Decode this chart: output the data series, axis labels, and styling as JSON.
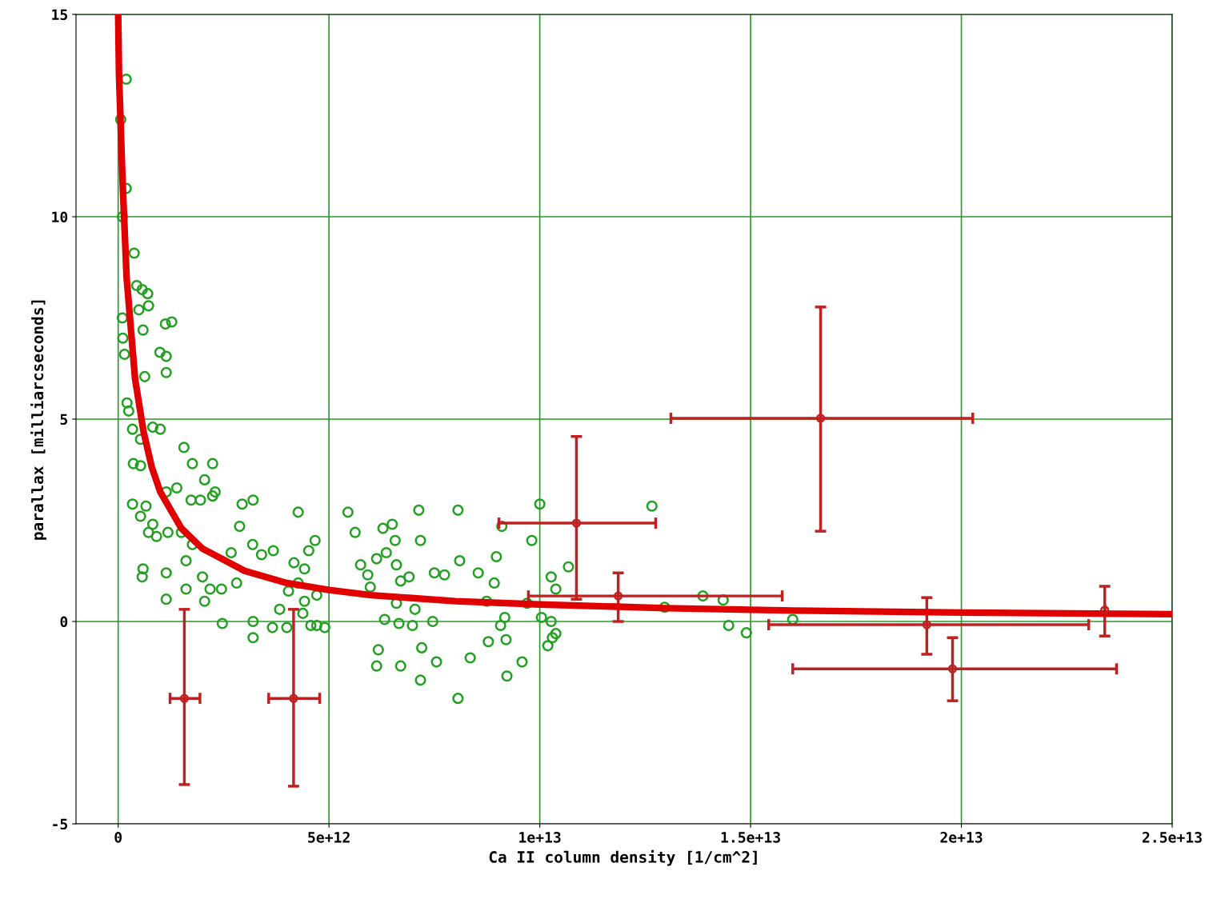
{
  "chart_data": {
    "type": "scatter",
    "xlabel": "Ca II column density [1/cm^2]",
    "ylabel": "parallax [milliarcseconds]",
    "xlim": [
      -1000000000000.0,
      25000000000000.0
    ],
    "ylim": [
      -5,
      15
    ],
    "xticks": [
      0,
      {
        "value": 5000000000000.0,
        "label": "5e+12"
      },
      {
        "value": 10000000000000.0,
        "label": "1e+13"
      },
      {
        "value": 15000000000000.0,
        "label": "1.5e+13"
      },
      {
        "value": 20000000000000.0,
        "label": "2e+13"
      },
      {
        "value": 25000000000000.0,
        "label": "2.5e+13"
      }
    ],
    "yticks": [
      -5,
      0,
      5,
      10,
      15
    ],
    "grid": true,
    "legend": false,
    "series": [
      {
        "color": "#22a022",
        "marker": "circle",
        "x": [
          190000000000.0,
          60000000000.0,
          190000000000.0,
          100000000000.0,
          380000000000.0,
          440000000000.0,
          570000000000.0,
          700000000000.0,
          720000000000.0,
          490000000000.0,
          100000000000.0,
          590000000000.0,
          1270000000000.0,
          1120000000000.0,
          990000000000.0,
          1140000000000.0,
          1140000000000.0,
          110000000000.0,
          150000000000.0,
          630000000000.0,
          210000000000.0,
          250000000000.0,
          340000000000.0,
          530000000000.0,
          820000000000.0,
          1000000000000.0,
          1560000000000.0,
          360000000000.0,
          530000000000.0,
          1390000000000.0,
          340000000000.0,
          1140000000000.0,
          1730000000000.0,
          1950000000000.0,
          2240000000000.0,
          2300000000000.0,
          1760000000000.0,
          2240000000000.0,
          2050000000000.0,
          660000000000.0,
          820000000000.0,
          720000000000.0,
          910000000000.0,
          530000000000.0,
          1180000000000.0,
          1500000000000.0,
          1760000000000.0,
          1610000000000.0,
          590000000000.0,
          570000000000.0,
          1140000000000.0,
          1140000000000.0,
          1610000000000.0,
          2000000000000.0,
          2180000000000.0,
          2050000000000.0,
          2470000000000.0,
          2450000000000.0,
          2880000000000.0,
          2940000000000.0,
          3200000000000.0,
          2680000000000.0,
          3190000000000.0,
          3400000000000.0,
          3680000000000.0,
          3200000000000.0,
          3200000000000.0,
          3660000000000.0,
          4000000000000.0,
          4270000000000.0,
          4170000000000.0,
          4520000000000.0,
          4670000000000.0,
          4420000000000.0,
          4040000000000.0,
          4270000000000.0,
          4710000000000.0,
          4380000000000.0,
          4710000000000.0,
          4900000000000.0,
          4570000000000.0,
          3830000000000.0,
          4420000000000.0,
          2810000000000.0,
          5450000000000.0,
          5620000000000.0,
          5750000000000.0,
          5980000000000.0,
          5920000000000.0,
          6130000000000.0,
          6280000000000.0,
          6500000000000.0,
          6570000000000.0,
          6360000000000.0,
          6600000000000.0,
          6700000000000.0,
          6900000000000.0,
          7130000000000.0,
          7170000000000.0,
          7500000000000.0,
          7740000000000.0,
          8060000000000.0,
          8100000000000.0,
          8540000000000.0,
          8920000000000.0,
          9100000000000.0,
          8970000000000.0,
          7040000000000.0,
          6600000000000.0,
          6320000000000.0,
          6660000000000.0,
          6980000000000.0,
          7460000000000.0,
          6170000000000.0,
          6130000000000.0,
          6700000000000.0,
          7200000000000.0,
          7170000000000.0,
          7550000000000.0,
          8060000000000.0,
          8350000000000.0,
          8780000000000.0,
          9070000000000.0,
          9170000000000.0,
          9200000000000.0,
          9580000000000.0,
          9220000000000.0,
          9810000000000.0,
          10000000000000.0,
          10270000000000.0,
          10380000000000.0,
          10680000000000.0,
          10040000000000.0,
          10270000000000.0,
          10380000000000.0,
          10190000000000.0,
          10300000000000.0,
          12660000000000.0,
          13870000000000.0,
          12960000000000.0,
          14350000000000.0,
          14480000000000.0,
          14900000000000.0,
          16000000000000.0,
          9700000000000.0,
          8740000000000.0
        ],
        "values": [
          13.4,
          12.4,
          10.7,
          10.0,
          9.1,
          8.3,
          8.2,
          8.1,
          7.8,
          7.7,
          7.5,
          7.2,
          7.4,
          7.35,
          6.65,
          6.55,
          6.15,
          7.0,
          6.6,
          6.05,
          5.4,
          5.2,
          4.75,
          4.5,
          4.8,
          4.75,
          4.3,
          3.9,
          3.85,
          3.3,
          2.9,
          3.2,
          3.0,
          3.0,
          3.1,
          3.2,
          3.9,
          3.9,
          3.5,
          2.85,
          2.4,
          2.2,
          2.1,
          2.6,
          2.2,
          2.2,
          1.9,
          1.5,
          1.3,
          1.1,
          1.2,
          0.55,
          0.8,
          1.1,
          0.8,
          0.5,
          -0.05,
          0.8,
          2.35,
          2.9,
          3.0,
          1.7,
          1.9,
          1.65,
          1.75,
          0.0,
          -0.4,
          -0.15,
          -0.15,
          2.7,
          1.45,
          1.75,
          2.0,
          1.3,
          0.75,
          0.95,
          0.65,
          0.2,
          -0.1,
          -0.15,
          -0.1,
          0.3,
          0.5,
          0.95,
          2.7,
          2.2,
          1.4,
          0.85,
          1.15,
          1.55,
          2.3,
          2.4,
          2.0,
          1.7,
          1.4,
          1.0,
          1.1,
          2.75,
          2.0,
          1.2,
          1.15,
          2.75,
          1.5,
          1.2,
          0.95,
          2.35,
          1.6,
          0.3,
          0.45,
          0.05,
          -0.05,
          -0.1,
          0.0,
          -0.7,
          -1.1,
          -1.1,
          -0.65,
          -1.45,
          -1.0,
          -1.9,
          -0.9,
          -0.5,
          -0.1,
          0.1,
          -0.45,
          -1.0,
          -1.35,
          2.0,
          2.9,
          1.1,
          0.8,
          1.35,
          0.1,
          0.0,
          -0.3,
          -0.6,
          -0.4,
          2.85,
          0.63,
          0.35,
          0.53,
          -0.1,
          -0.28,
          0.05,
          0.45,
          0.5
        ]
      },
      {
        "type": "line",
        "color": "#e00000",
        "marker": "none",
        "line_style": "solid",
        "x": [
          0.0,
          20000000000.0,
          100000000000.0,
          200000000000.0,
          400000000000.0,
          600000000000.0,
          800000000000.0,
          1000000000000.0,
          1500000000000.0,
          2000000000000.0,
          3000000000000.0,
          4000000000000.0,
          5000000000000.0,
          6000000000000.0,
          8000000000000.0,
          10000000000000.0,
          13000000000000.0,
          16000000000000.0,
          20000000000000.0,
          25000000000000.0
        ],
        "values": [
          15,
          13.5,
          11,
          8.5,
          6,
          4.7,
          3.8,
          3.2,
          2.3,
          1.8,
          1.25,
          0.95,
          0.78,
          0.65,
          0.5,
          0.42,
          0.33,
          0.27,
          0.22,
          0.18
        ]
      },
      {
        "color": "#c02020",
        "marker": "circle",
        "x": [
          1570000000000.0,
          4160000000000.0,
          10870000000000.0,
          11860000000000.0,
          16660000000000.0,
          19180000000000.0,
          19790000000000.0,
          23400000000000.0
        ],
        "values": [
          -1.9,
          -1.9,
          2.43,
          0.63,
          5.02,
          -0.08,
          -1.17,
          0.28
        ],
        "errors": [
          [
            -4.03,
            0.3
          ],
          [
            -4.07,
            0.3
          ],
          [
            0.55,
            4.57
          ],
          [
            0.0,
            1.2
          ],
          [
            2.23,
            7.77
          ],
          [
            -0.81,
            0.59
          ],
          [
            -1.96,
            -0.4
          ],
          [
            -0.36,
            0.87
          ]
        ],
        "xerrors": [
          [
            1230000000000.0,
            1940000000000.0
          ],
          [
            3570000000000.0,
            4780000000000.0
          ],
          [
            9030000000000.0,
            12750000000000.0
          ],
          [
            9730000000000.0,
            15750000000000.0
          ],
          [
            13110000000000.0,
            20270000000000.0
          ],
          [
            15430000000000.0,
            23020000000000.0
          ],
          [
            16000000000000.0,
            23680000000000.0
          ],
          null
        ]
      }
    ]
  }
}
